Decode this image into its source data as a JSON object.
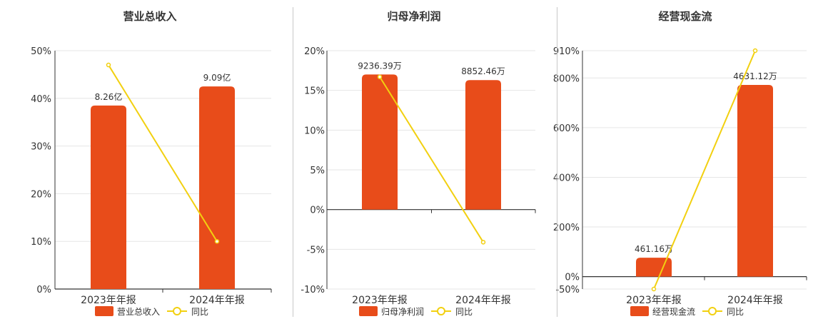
{
  "colors": {
    "bar": "#e84c1a",
    "line": "#f2d010",
    "grid": "#e6e6e6",
    "axis": "#333333",
    "text": "#333333"
  },
  "legend": {
    "yoy_label": "同比"
  },
  "chart_data": [
    {
      "type": "bar",
      "title": "营业总收入",
      "categories": [
        "2023年年报",
        "2024年年报"
      ],
      "series": [
        {
          "name": "营业总收入",
          "type": "bar",
          "labels": [
            "8.26亿",
            "9.09亿"
          ],
          "values_pct_axis": [
            38.5,
            42.5
          ]
        },
        {
          "name": "同比",
          "type": "line",
          "values": [
            47,
            10
          ]
        }
      ],
      "yticks": [
        "50%",
        "40%",
        "30%",
        "20%",
        "10%",
        "0%"
      ],
      "ylim": [
        0,
        50
      ],
      "grid": true,
      "legend_position": "bottom"
    },
    {
      "type": "bar",
      "title": "归母净利润",
      "categories": [
        "2023年年报",
        "2024年年报"
      ],
      "series": [
        {
          "name": "归母净利润",
          "type": "bar",
          "labels": [
            "9236.39万",
            "8852.46万"
          ],
          "values_pct_axis": [
            17,
            16.3
          ]
        },
        {
          "name": "同比",
          "type": "line",
          "values": [
            16.7,
            -4.1
          ]
        }
      ],
      "yticks": [
        "20%",
        "15%",
        "10%",
        "5%",
        "0%",
        "-5%",
        "-10%"
      ],
      "ylim": [
        -10,
        20
      ],
      "grid": true,
      "legend_position": "bottom"
    },
    {
      "type": "bar",
      "title": "经营现金流",
      "categories": [
        "2023年年报",
        "2024年年报"
      ],
      "series": [
        {
          "name": "经营现金流",
          "type": "bar",
          "labels": [
            "461.16万",
            "4631.12万"
          ],
          "values_pct_axis": [
            76,
            772
          ]
        },
        {
          "name": "同比",
          "type": "line",
          "values": [
            -50,
            910
          ]
        }
      ],
      "yticks": [
        "910%",
        "800%",
        "600%",
        "400%",
        "200%",
        "0%",
        "-50%"
      ],
      "ylim": [
        -50,
        910
      ],
      "grid": true,
      "legend_position": "bottom"
    }
  ]
}
